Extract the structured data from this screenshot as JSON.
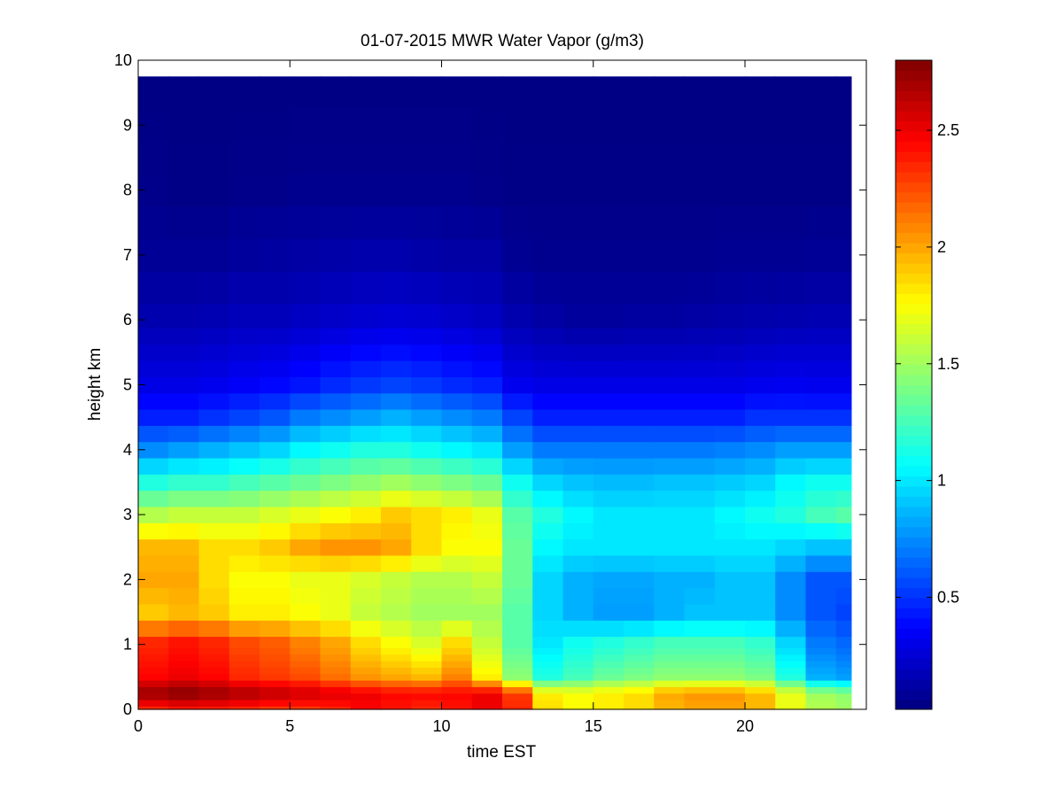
{
  "chart_data": {
    "type": "heatmap",
    "title": "01-07-2015 MWR Water Vapor (g/m3)",
    "xlabel": "time EST",
    "ylabel": "height km",
    "xlim": [
      0,
      24
    ],
    "ylim": [
      0,
      10
    ],
    "x_ticks": [
      0,
      5,
      10,
      15,
      20
    ],
    "y_ticks": [
      0,
      1,
      2,
      3,
      4,
      5,
      6,
      7,
      8,
      9,
      10
    ],
    "colorbar": {
      "colormap": "jet",
      "range": [
        0.02,
        2.8
      ],
      "ticks": [
        0.5,
        1,
        1.5,
        2,
        2.5
      ]
    },
    "data_extent": {
      "x": [
        0,
        23.5
      ],
      "y": [
        0,
        9.75
      ]
    },
    "time_hours": [
      0.5,
      1.5,
      2.5,
      3.5,
      4.5,
      5.5,
      6.5,
      7.5,
      8.5,
      9.5,
      10.5,
      11.5,
      12.5,
      13.5,
      14.5,
      15.5,
      16.5,
      17.5,
      18.5,
      19.5,
      20.5,
      21.5,
      22.5,
      23.5
    ],
    "height_km": [
      0,
      0.1,
      0.2,
      0.3,
      0.4,
      0.5,
      0.6,
      0.7,
      0.8,
      0.9,
      1.0,
      1.25,
      1.5,
      1.75,
      2.0,
      2.25,
      2.5,
      2.75,
      3.0,
      3.25,
      3.5,
      3.75,
      4.0,
      4.25,
      4.5,
      4.75,
      5.0,
      5.25,
      5.5,
      5.75,
      6.0,
      6.5,
      7.0,
      7.5,
      8.0,
      8.5,
      9.0,
      9.5
    ],
    "profiles": {
      "surface": [
        2.35,
        2.4,
        2.38,
        2.35,
        2.3,
        2.3,
        2.35,
        2.45,
        2.4,
        2.35,
        2.4,
        2.5,
        2.35,
        1.85,
        1.75,
        1.8,
        1.85,
        1.95,
        2.0,
        2.0,
        1.95,
        1.7,
        1.55,
        1.5
      ],
      "peak": [
        2.75,
        2.8,
        2.75,
        2.7,
        2.65,
        2.6,
        2.55,
        2.5,
        2.45,
        2.45,
        2.45,
        2.5,
        2.3,
        1.8,
        1.75,
        1.8,
        1.85,
        2.0,
        2.05,
        2.05,
        1.95,
        1.7,
        1.5,
        1.45
      ],
      "k05": [
        2.45,
        2.5,
        2.45,
        2.35,
        2.3,
        2.25,
        2.15,
        2.05,
        2.0,
        1.95,
        2.1,
        1.8,
        1.45,
        1.15,
        1.25,
        1.35,
        1.4,
        1.45,
        1.45,
        1.45,
        1.4,
        1.15,
        0.85,
        0.8
      ],
      "k10": [
        2.35,
        2.4,
        2.35,
        2.25,
        2.2,
        2.1,
        2.0,
        1.85,
        1.75,
        1.65,
        1.85,
        1.6,
        1.3,
        1.0,
        1.1,
        1.15,
        1.2,
        1.25,
        1.25,
        1.25,
        1.2,
        0.95,
        0.7,
        0.65
      ],
      "k15": [
        1.9,
        1.95,
        1.9,
        1.8,
        1.8,
        1.75,
        1.7,
        1.6,
        1.55,
        1.5,
        1.5,
        1.5,
        1.3,
        0.95,
        0.85,
        0.8,
        0.8,
        0.85,
        0.9,
        0.9,
        0.9,
        0.75,
        0.6,
        0.55
      ],
      "k20": [
        2.0,
        2.0,
        1.85,
        1.75,
        1.75,
        1.7,
        1.7,
        1.65,
        1.6,
        1.55,
        1.55,
        1.6,
        1.35,
        0.95,
        0.85,
        0.82,
        0.82,
        0.85,
        0.85,
        0.9,
        0.9,
        0.75,
        0.6,
        0.6
      ],
      "k25": [
        1.95,
        1.95,
        1.85,
        1.85,
        1.9,
        2.0,
        2.05,
        2.05,
        2.0,
        1.85,
        1.75,
        1.75,
        1.35,
        1.05,
        1.0,
        1.0,
        1.0,
        1.0,
        1.0,
        1.0,
        1.0,
        0.95,
        0.9,
        0.9
      ],
      "k30": [
        1.55,
        1.6,
        1.6,
        1.6,
        1.65,
        1.7,
        1.75,
        1.8,
        1.9,
        1.85,
        1.8,
        1.7,
        1.3,
        1.15,
        1.05,
        1.0,
        1.0,
        1.0,
        1.0,
        1.05,
        1.1,
        1.15,
        1.25,
        1.3
      ],
      "k35": [
        1.15,
        1.2,
        1.2,
        1.25,
        1.3,
        1.35,
        1.4,
        1.45,
        1.5,
        1.45,
        1.4,
        1.35,
        1.1,
        0.95,
        0.9,
        0.88,
        0.88,
        0.9,
        0.9,
        0.92,
        0.95,
        1.05,
        1.1,
        1.1
      ],
      "k40": [
        0.75,
        0.8,
        0.85,
        0.9,
        0.95,
        1.05,
        1.1,
        1.15,
        1.15,
        1.1,
        1.05,
        1.0,
        0.8,
        0.7,
        0.7,
        0.7,
        0.7,
        0.7,
        0.7,
        0.72,
        0.75,
        0.8,
        0.8,
        0.8
      ],
      "k45": [
        0.45,
        0.45,
        0.5,
        0.55,
        0.6,
        0.7,
        0.75,
        0.8,
        0.85,
        0.8,
        0.75,
        0.7,
        0.55,
        0.45,
        0.45,
        0.45,
        0.45,
        0.45,
        0.45,
        0.45,
        0.5,
        0.5,
        0.5,
        0.5
      ],
      "k50": [
        0.3,
        0.3,
        0.32,
        0.35,
        0.38,
        0.42,
        0.48,
        0.52,
        0.55,
        0.52,
        0.48,
        0.45,
        0.32,
        0.3,
        0.3,
        0.3,
        0.3,
        0.3,
        0.3,
        0.3,
        0.32,
        0.33,
        0.32,
        0.32
      ],
      "k60": [
        0.15,
        0.15,
        0.16,
        0.18,
        0.18,
        0.2,
        0.22,
        0.24,
        0.25,
        0.24,
        0.22,
        0.2,
        0.15,
        0.12,
        0.1,
        0.1,
        0.11,
        0.11,
        0.12,
        0.13,
        0.14,
        0.15,
        0.16,
        0.16
      ],
      "k70": [
        0.08,
        0.08,
        0.08,
        0.1,
        0.11,
        0.12,
        0.13,
        0.14,
        0.14,
        0.13,
        0.12,
        0.12,
        0.07,
        0.06,
        0.06,
        0.06,
        0.06,
        0.06,
        0.06,
        0.07,
        0.07,
        0.07,
        0.08,
        0.08
      ],
      "k80": [
        0.05,
        0.04,
        0.04,
        0.05,
        0.05,
        0.06,
        0.06,
        0.06,
        0.06,
        0.06,
        0.06,
        0.05,
        0.04,
        0.04,
        0.04,
        0.04,
        0.04,
        0.04,
        0.04,
        0.04,
        0.04,
        0.04,
        0.04,
        0.04
      ],
      "k97": [
        0.03,
        0.03,
        0.03,
        0.03,
        0.03,
        0.03,
        0.03,
        0.03,
        0.03,
        0.03,
        0.03,
        0.03,
        0.03,
        0.03,
        0.03,
        0.03,
        0.03,
        0.03,
        0.03,
        0.03,
        0.03,
        0.03,
        0.03,
        0.03
      ]
    }
  }
}
